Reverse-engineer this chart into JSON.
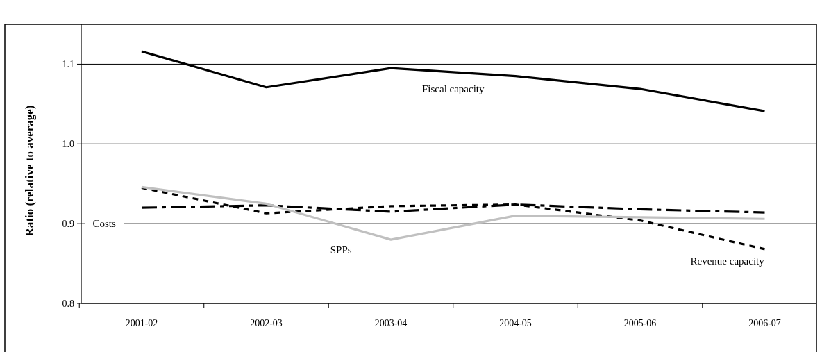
{
  "chart_data": {
    "type": "line",
    "ylabel": "Ratio (relative to average)",
    "categories": [
      "2001-02",
      "2002-03",
      "2003-04",
      "2004-05",
      "2005-06",
      "2006-07"
    ],
    "series": [
      {
        "name": "Fiscal capacity",
        "color": "#000000",
        "line_style": "solid",
        "values": [
          1.116,
          1.071,
          1.095,
          1.085,
          1.069,
          1.041
        ]
      },
      {
        "name": "Revenue capacity",
        "color": "#000000",
        "line_style": "dotted",
        "values": [
          0.945,
          0.913,
          0.922,
          0.924,
          0.904,
          0.868
        ]
      },
      {
        "name": "Costs",
        "color": "#000000",
        "line_style": "dashed",
        "values": [
          0.92,
          0.923,
          0.915,
          0.924,
          0.918,
          0.914
        ]
      },
      {
        "name": "SPPs",
        "color": "#c0c0c0",
        "line_style": "solid",
        "values": [
          0.946,
          0.925,
          0.88,
          0.91,
          0.908,
          0.906
        ]
      }
    ],
    "ylim": [
      0.8,
      1.15
    ],
    "yticks": [
      {
        "value": 0.8,
        "label": "0.8"
      },
      {
        "value": 0.9,
        "label": "0.9"
      },
      {
        "value": 1.0,
        "label": "1.0"
      },
      {
        "value": 1.1,
        "label": "1.1"
      }
    ],
    "grid": "y",
    "marker": "none"
  }
}
